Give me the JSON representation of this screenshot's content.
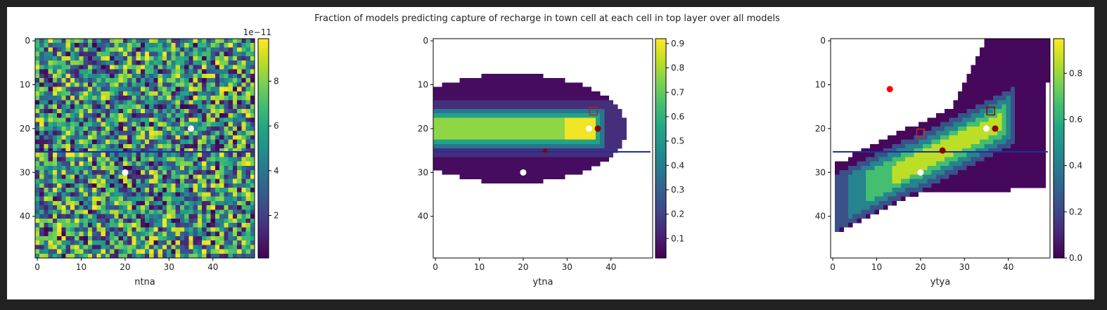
{
  "title": "Fraction of models predicting capture of recharge in town cell at each cell in top layer over all models",
  "chart_data": [
    {
      "type": "heatmap",
      "xlabel": "ntna",
      "grid": false,
      "x_ticks": [
        0,
        10,
        20,
        30,
        40
      ],
      "y_ticks": [
        0,
        10,
        20,
        30,
        40
      ],
      "xlim": [
        -0.5,
        49.5
      ],
      "ylim": [
        49.5,
        -0.5
      ],
      "colorbar": {
        "ticks": [
          2,
          4,
          6,
          8
        ],
        "tick_labels": [
          "2",
          "4",
          "6",
          "8"
        ],
        "offset_text": "1e−11",
        "range": [
          0.1,
          9.9
        ]
      },
      "field": {
        "kind": "noise",
        "grid": [
          50,
          50
        ]
      },
      "hline_y": 25.3,
      "points": [
        {
          "x": 35,
          "y": 20,
          "color": "#ffffff",
          "marker": "circle"
        },
        {
          "x": 20,
          "y": 30,
          "color": "#ffffff",
          "marker": "circle"
        }
      ]
    },
    {
      "type": "heatmap",
      "xlabel": "ytna",
      "grid": false,
      "x_ticks": [
        0,
        10,
        20,
        30,
        40
      ],
      "y_ticks": [
        0,
        10,
        20,
        30,
        40
      ],
      "xlim": [
        -0.5,
        49.5
      ],
      "ylim": [
        49.5,
        -0.5
      ],
      "colorbar": {
        "ticks": [
          0.1,
          0.2,
          0.3,
          0.4,
          0.5,
          0.6,
          0.7,
          0.8,
          0.9
        ],
        "tick_labels": [
          "0.1",
          "0.2",
          "0.3",
          "0.4",
          "0.5",
          "0.6",
          "0.7",
          "0.8",
          "0.9"
        ],
        "range": [
          0.02,
          0.92
        ]
      },
      "field": {
        "kind": "ytna",
        "grid": [
          50,
          50
        ]
      },
      "hline_y": 25.3,
      "points": [
        {
          "x": 35,
          "y": 20,
          "color": "#ffffff",
          "marker": "circle"
        },
        {
          "x": 20,
          "y": 30,
          "color": "#ffffff",
          "marker": "circle"
        },
        {
          "x": 37,
          "y": 20,
          "color": "#8b0000",
          "marker": "circle"
        },
        {
          "x": 25,
          "y": 25,
          "color": "#8b0000",
          "marker": "dot"
        },
        {
          "x": 36,
          "y": 16,
          "color": "#b22222",
          "marker": "square"
        }
      ]
    },
    {
      "type": "heatmap",
      "xlabel": "ytya",
      "grid": false,
      "x_ticks": [
        0,
        10,
        20,
        30,
        40
      ],
      "y_ticks": [
        0,
        10,
        20,
        30,
        40
      ],
      "xlim": [
        -0.5,
        49.5
      ],
      "ylim": [
        49.5,
        -0.5
      ],
      "colorbar": {
        "ticks": [
          0.0,
          0.2,
          0.4,
          0.6,
          0.8
        ],
        "tick_labels": [
          "0.0",
          "0.2",
          "0.4",
          "0.6",
          "0.8"
        ],
        "range": [
          0.0,
          0.95
        ]
      },
      "field": {
        "kind": "ytya",
        "grid": [
          50,
          50
        ]
      },
      "hline_y": 25.3,
      "points": [
        {
          "x": 13,
          "y": 11,
          "color": "#ff0000",
          "marker": "circle"
        },
        {
          "x": 35,
          "y": 20,
          "color": "#ffffff",
          "marker": "circle"
        },
        {
          "x": 20,
          "y": 30,
          "color": "#ffffff",
          "marker": "circle"
        },
        {
          "x": 37,
          "y": 20,
          "color": "#8b0000",
          "marker": "circle"
        },
        {
          "x": 25,
          "y": 25,
          "color": "#8b0000",
          "marker": "circle"
        },
        {
          "x": 36,
          "y": 16,
          "color": "#8b0000",
          "marker": "square"
        },
        {
          "x": 20,
          "y": 21,
          "color": "#d62728",
          "marker": "square"
        }
      ]
    }
  ],
  "colors": {
    "hline": "#1f2f9f",
    "frame": "#000000"
  }
}
